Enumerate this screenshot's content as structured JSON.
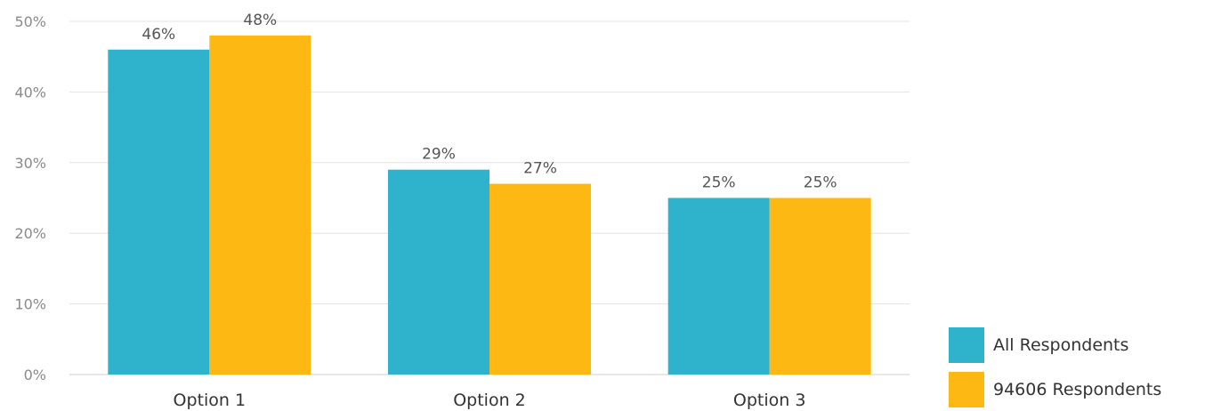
{
  "chart_data": {
    "type": "bar",
    "categories": [
      "Option 1",
      "Option 2",
      "Option 3"
    ],
    "series": [
      {
        "name": "All Respondents",
        "values": [
          46,
          29,
          25
        ],
        "labels": [
          "46%",
          "29%",
          "25%"
        ],
        "color": "#2fb2cb"
      },
      {
        "name": "94606 Respondents",
        "values": [
          48,
          27,
          25
        ],
        "labels": [
          "48%",
          "27%",
          "25%"
        ],
        "color": "#fdb813"
      }
    ],
    "ylim": [
      0,
      50
    ],
    "yticks": [
      0,
      10,
      20,
      30,
      40,
      50
    ],
    "ytick_labels": [
      "0%",
      "10%",
      "20%",
      "30%",
      "40%",
      "50%"
    ],
    "grid": true,
    "legend_position": "bottom-right",
    "title": "",
    "xlabel": "",
    "ylabel": ""
  }
}
